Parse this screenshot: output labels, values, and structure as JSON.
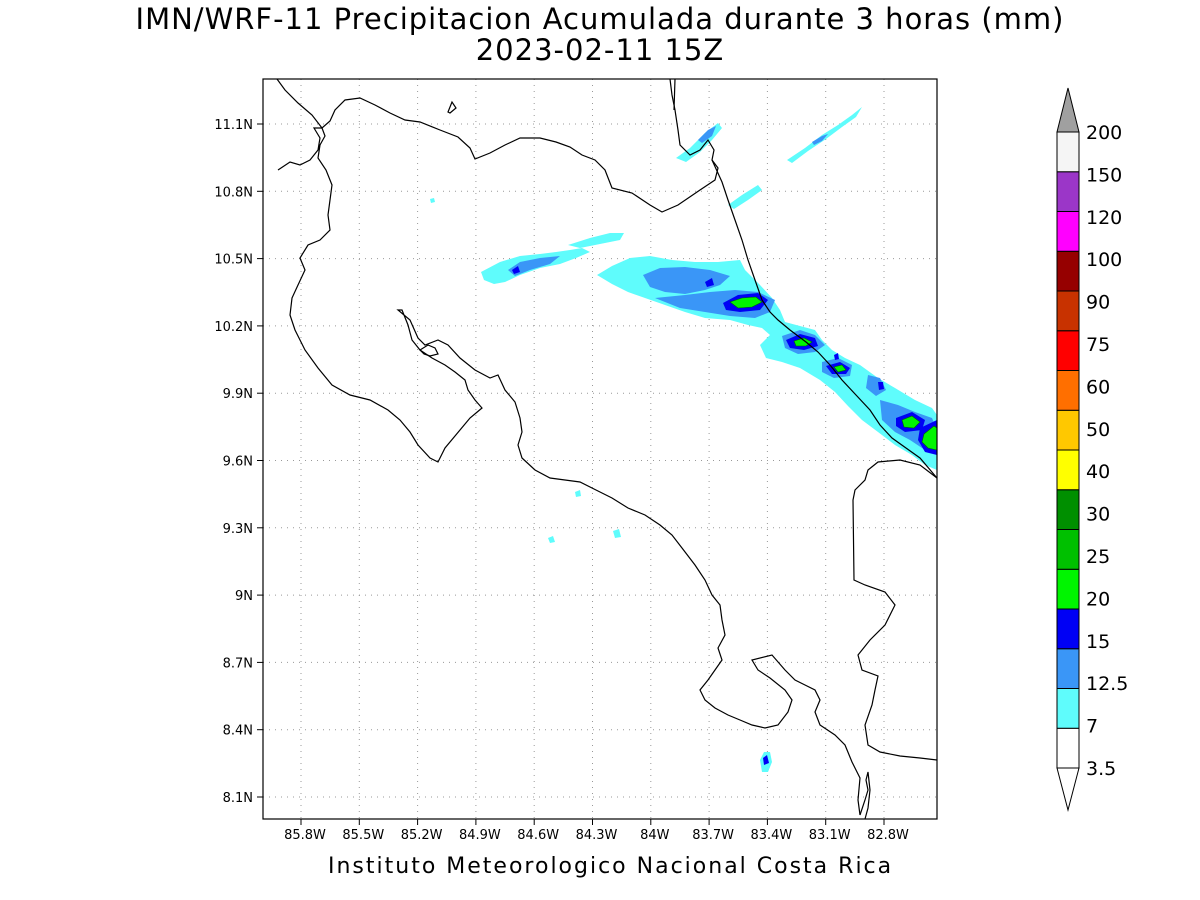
{
  "title": {
    "line1": "IMN/WRF-11 Precipitacion Acumulada durante 3 horas (mm)",
    "line2": "2023-02-11 15Z"
  },
  "footer": "Instituto Meteorologico Nacional Costa Rica",
  "map": {
    "lat_labels": [
      "11.1N",
      "10.8N",
      "10.5N",
      "10.2N",
      "9.9N",
      "9.6N",
      "9.3N",
      "9N",
      "8.7N",
      "8.4N",
      "8.1N"
    ],
    "lon_labels": [
      "85.8W",
      "85.5W",
      "85.2W",
      "84.9W",
      "84.6W",
      "84.3W",
      "84W",
      "83.7W",
      "83.4W",
      "83.1W",
      "82.8W"
    ],
    "gridlines": "dotted",
    "coastline_color": "#000000"
  },
  "colorbar": {
    "labels": [
      "3.5",
      "7",
      "12.5",
      "15",
      "20",
      "25",
      "30",
      "40",
      "50",
      "60",
      "75",
      "90",
      "100",
      "120",
      "150",
      "200"
    ],
    "colors": [
      "#ffffff",
      "#5ffcfc",
      "#3a96f7",
      "#0000f5",
      "#00f500",
      "#00c000",
      "#008f00",
      "#ffff00",
      "#ffc800",
      "#ff6f00",
      "#ff0000",
      "#c83200",
      "#960000",
      "#ff00ff",
      "#9b36c8",
      "#f5f5f5"
    ],
    "top_triangle_color": "#a0a0a0",
    "bottom_triangle_color": "#ffffff"
  }
}
